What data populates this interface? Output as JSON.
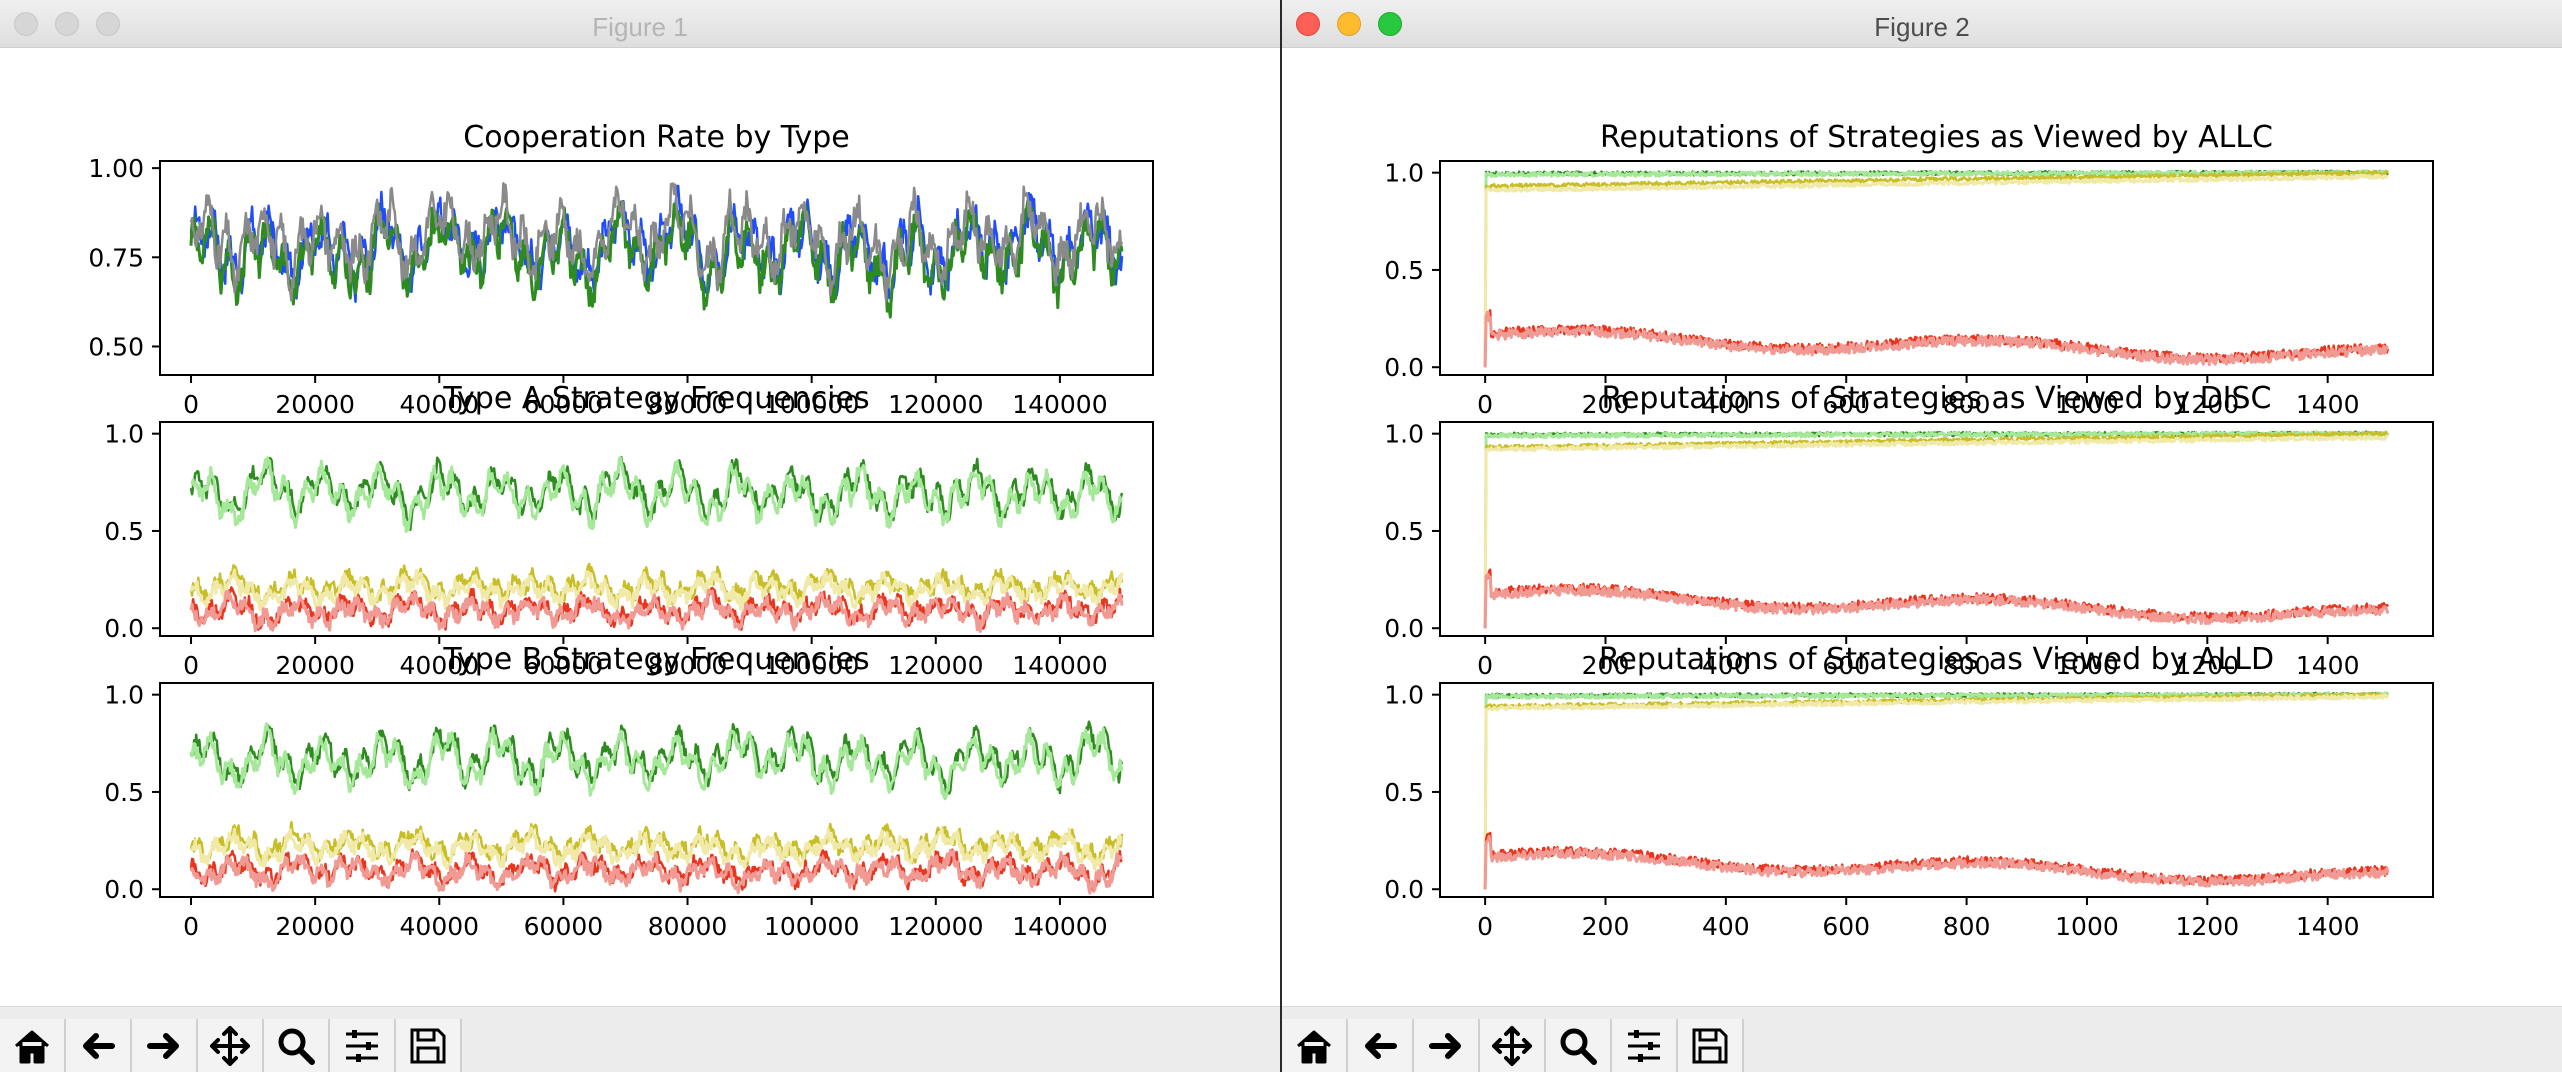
{
  "windows": [
    {
      "title": "Figure 1",
      "active": false,
      "toolbar": [
        "home-icon",
        "back-arrow-icon",
        "forward-arrow-icon",
        "pan-icon",
        "zoom-icon",
        "subplots-config-icon",
        "save-icon"
      ]
    },
    {
      "title": "Figure 2",
      "active": true,
      "toolbar": [
        "home-icon",
        "back-arrow-icon",
        "forward-arrow-icon",
        "pan-icon",
        "zoom-icon",
        "subplots-config-icon",
        "save-icon"
      ]
    }
  ],
  "chart_data": [
    {
      "type": "line",
      "window": "Figure 1",
      "title": "Cooperation Rate by Type",
      "xticks": [
        "0",
        "20000",
        "40000",
        "60000",
        "80000",
        "100000",
        "120000",
        "140000"
      ],
      "yticks": [
        "0.50",
        "0.75",
        "1.00"
      ],
      "xlim": [
        -5000,
        155000
      ],
      "ylim": [
        0.42,
        1.02
      ],
      "colors": [
        "#1f4cff",
        "#2e8b1f",
        "#8a8a8a"
      ],
      "base": [
        0.78,
        0.76,
        0.8
      ],
      "amp": 0.13
    },
    {
      "type": "line",
      "window": "Figure 1",
      "title": "Type A Strategy Frequencies",
      "xticks": [
        "0",
        "20000",
        "40000",
        "60000",
        "80000",
        "100000",
        "120000",
        "140000"
      ],
      "yticks": [
        "0.0",
        "0.5",
        "1.0"
      ],
      "xlim": [
        -5000,
        155000
      ],
      "ylim": [
        -0.04,
        1.06
      ],
      "colors": [
        "#2e8b1f",
        "#a6e89a",
        "#c8be28",
        "#f1e9a7",
        "#e8351e",
        "#f19a94"
      ],
      "base": [
        0.7,
        0.68,
        0.22,
        0.2,
        0.1,
        0.09
      ],
      "amp": 0.14
    },
    {
      "type": "line",
      "window": "Figure 1",
      "title": "Type B Strategy Frequencies",
      "xticks": [
        "0",
        "20000",
        "40000",
        "60000",
        "80000",
        "100000",
        "120000",
        "140000"
      ],
      "yticks": [
        "0.0",
        "0.5",
        "1.0"
      ],
      "xlim": [
        -5000,
        155000
      ],
      "ylim": [
        -0.04,
        1.06
      ],
      "colors": [
        "#2e8b1f",
        "#a6e89a",
        "#c8be28",
        "#f1e9a7",
        "#e8351e",
        "#f19a94"
      ],
      "base": [
        0.68,
        0.66,
        0.23,
        0.21,
        0.1,
        0.09
      ],
      "amp": 0.14
    },
    {
      "type": "line",
      "window": "Figure 2",
      "title": "Reputations of Strategies as Viewed by ALLC",
      "xticks": [
        "0",
        "200",
        "400",
        "600",
        "800",
        "1000",
        "1200",
        "1400"
      ],
      "yticks": [
        "0.0",
        "0.5",
        "1.0"
      ],
      "xlim": [
        -75,
        1575
      ],
      "ylim": [
        -0.04,
        1.06
      ],
      "colors": [
        "#2e8b1f",
        "#a6e89a",
        "#c8be28",
        "#f1e9a7",
        "#e8351e",
        "#f19a94"
      ],
      "series_levels": [
        0.995,
        0.99,
        0.93,
        0.91,
        0.17,
        0.16
      ],
      "ends": [
        1.0,
        1.0,
        1.0,
        0.98,
        0.06,
        0.05
      ]
    },
    {
      "type": "line",
      "window": "Figure 2",
      "title": "Reputations of Strategies as Viewed by DISC",
      "xticks": [
        "0",
        "200",
        "400",
        "600",
        "800",
        "1000",
        "1200",
        "1400"
      ],
      "yticks": [
        "0.0",
        "0.5",
        "1.0"
      ],
      "xlim": [
        -75,
        1575
      ],
      "ylim": [
        -0.04,
        1.06
      ],
      "colors": [
        "#2e8b1f",
        "#a6e89a",
        "#c8be28",
        "#f1e9a7",
        "#e8351e",
        "#f19a94"
      ],
      "series_levels": [
        0.995,
        0.99,
        0.93,
        0.92,
        0.18,
        0.17
      ],
      "ends": [
        1.0,
        1.0,
        1.0,
        0.98,
        0.07,
        0.06
      ]
    },
    {
      "type": "line",
      "window": "Figure 2",
      "title": "Reputations of Strategies as Viewed by ALLD",
      "xticks": [
        "0",
        "200",
        "400",
        "600",
        "800",
        "1000",
        "1200",
        "1400"
      ],
      "yticks": [
        "0.0",
        "0.5",
        "1.0"
      ],
      "xlim": [
        -75,
        1575
      ],
      "ylim": [
        -0.04,
        1.06
      ],
      "colors": [
        "#2e8b1f",
        "#a6e89a",
        "#c8be28",
        "#f1e9a7",
        "#e8351e",
        "#f19a94"
      ],
      "series_levels": [
        0.995,
        0.99,
        0.94,
        0.93,
        0.17,
        0.16
      ],
      "ends": [
        1.0,
        1.0,
        1.0,
        0.99,
        0.06,
        0.05
      ]
    }
  ]
}
